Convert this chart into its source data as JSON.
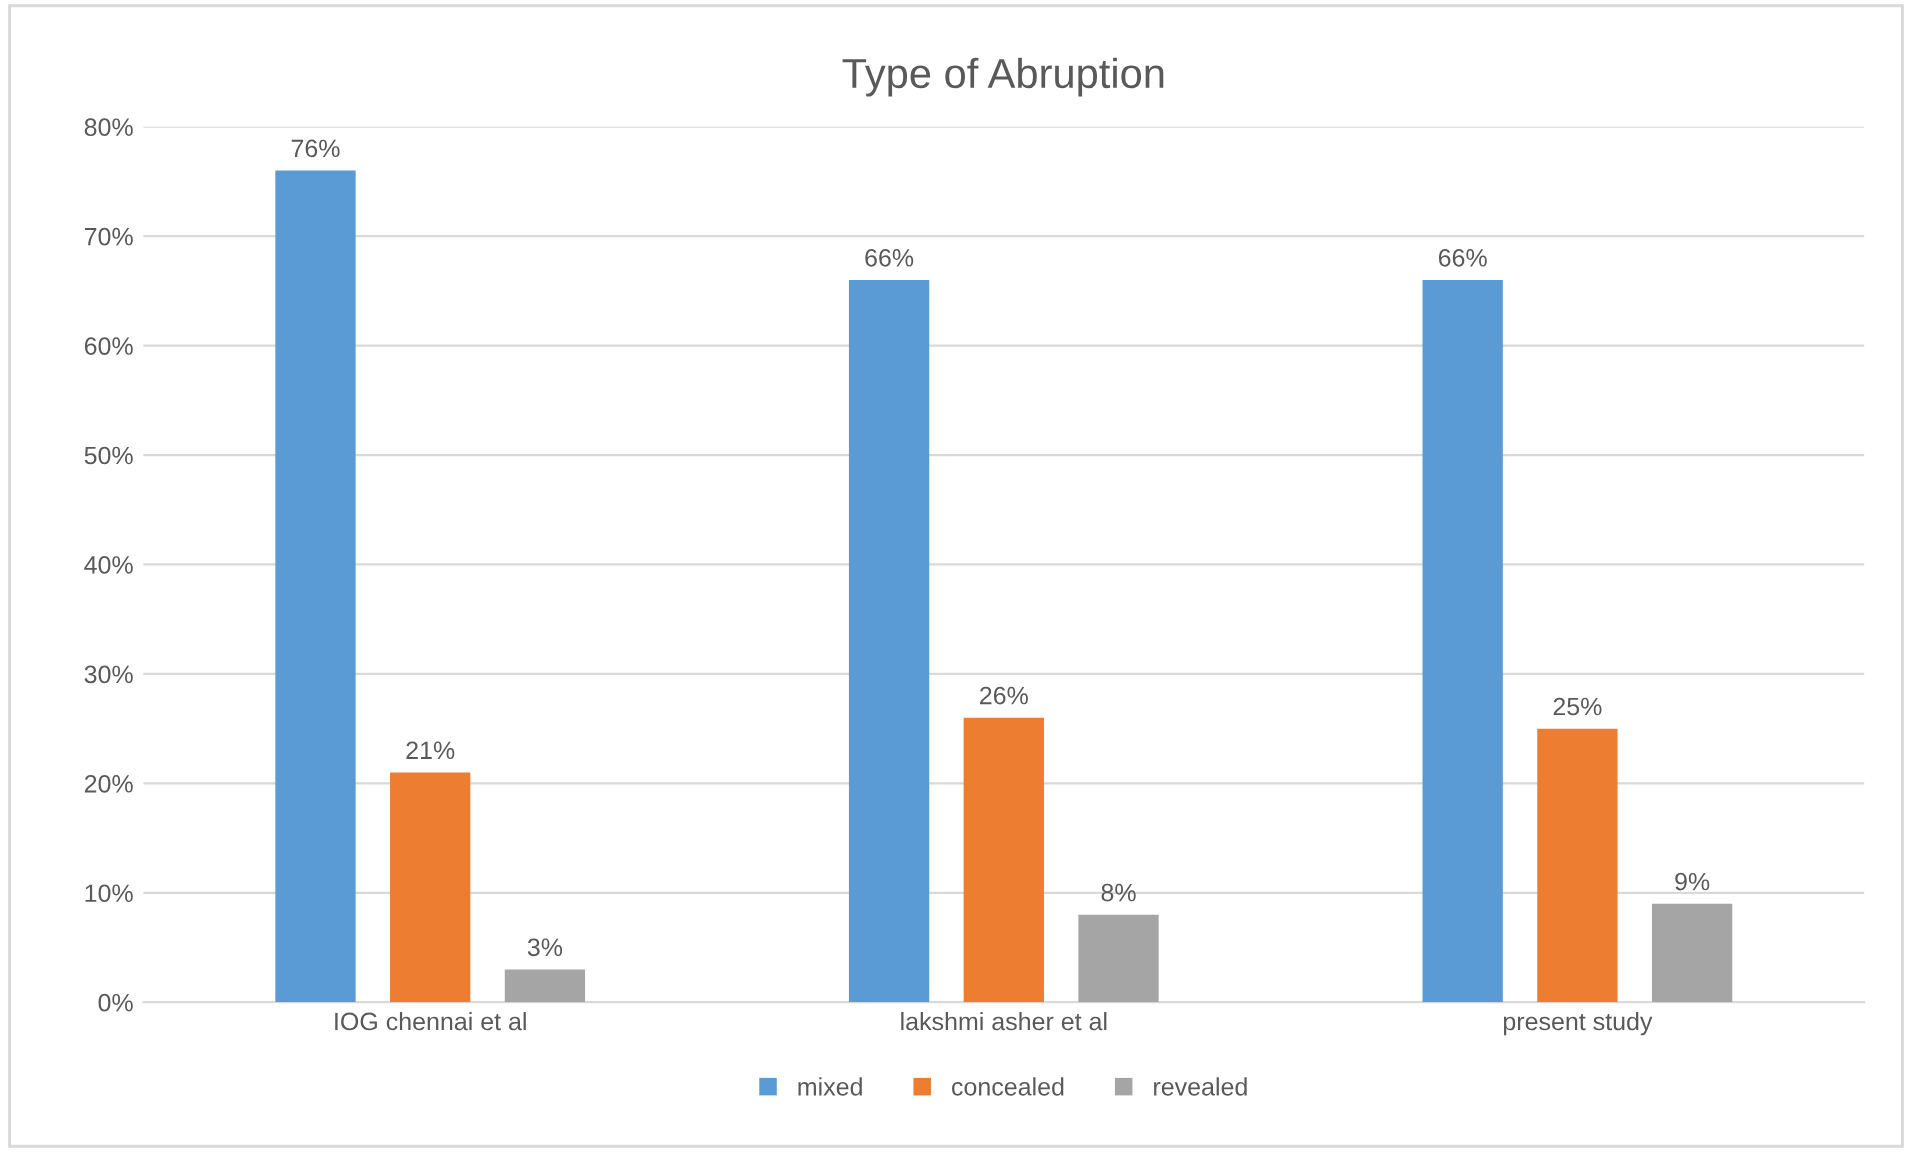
{
  "chart_data": {
    "type": "bar",
    "title": "Type of Abruption",
    "categories": [
      "IOG chennai et al",
      "lakshmi asher et al",
      "present study"
    ],
    "series": [
      {
        "name": "mixed",
        "color": "#5b9bd5",
        "values": [
          76,
          66,
          66
        ],
        "value_labels": [
          "76%",
          "66%",
          "66%"
        ]
      },
      {
        "name": "concealed",
        "color": "#ed7d31",
        "values": [
          21,
          26,
          25
        ],
        "value_labels": [
          "21%",
          "26%",
          "25%"
        ]
      },
      {
        "name": "revealed",
        "color": "#a5a5a5",
        "values": [
          3,
          8,
          9
        ],
        "value_labels": [
          "3%",
          "8%",
          "9%"
        ]
      }
    ],
    "ylim": [
      0,
      80
    ],
    "yticks": [
      {
        "value": 0,
        "label": "0%"
      },
      {
        "value": 10,
        "label": "10%"
      },
      {
        "value": 20,
        "label": "20%"
      },
      {
        "value": 30,
        "label": "30%"
      },
      {
        "value": 40,
        "label": "40%"
      },
      {
        "value": 50,
        "label": "50%"
      },
      {
        "value": 60,
        "label": "60%"
      },
      {
        "value": 70,
        "label": "70%"
      },
      {
        "value": 80,
        "label": "80%"
      }
    ],
    "grid": "y",
    "legend": "bottom"
  }
}
